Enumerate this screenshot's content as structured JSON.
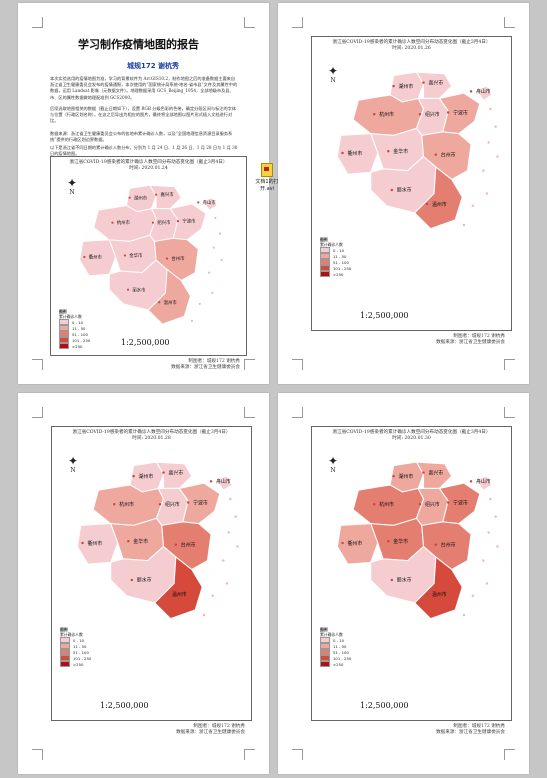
{
  "document": {
    "title": "学习制作疫情地图的报告",
    "author": "城规172 谢杭秀",
    "paragraphs": [
      "本次实验选用的疫情地图为准，学习的背景软件为 ArcGIS10.2，制作地图之后的准备数据主要来自浙江省卫生健康委员会发布的疫情通报，本次使用的“国家统计局系统-地名-省市县”文件及其属性中的数据，运用 Landsat 影像（元数据文件）。地理数据采用 GCS_Beijing_1954，全部地级市及县、市、区的属性数据做地理配准到 GCS2000。",
      "后续选取地图相关的数据（截止日期如下），设置 RGB 分级色彩的色带，确定分段区间与标注的字体与位置（行政区划名称）。在这之后导出为相应的图片，最终将全部地图以图片形式插入文档进行对比。",
      "数据来源：浙江省卫生健康委员会公布的各地市累计确诊人数，以及“全国地理信息资源目录服务系统”提供的行政区划边界数据。",
      "以下是浙江省不同日期的累计确诊人数分布，分别为 1 月 24 日、1 月 26 日、1 月 28 日与 1 月 30 日的疫情地图。"
    ],
    "attachment_label": "文档1的打开.avi"
  },
  "legend": {
    "title": "图例",
    "subtitle": "累计确诊人数",
    "classes": [
      {
        "label": "0 - 10",
        "color": "#f5cdd0"
      },
      {
        "label": "11 - 50",
        "color": "#eea89e"
      },
      {
        "label": "51 - 100",
        "color": "#e47e70"
      },
      {
        "label": "101 - 250",
        "color": "#d64a3b"
      },
      {
        "label": ">250",
        "color": "#b10f14"
      }
    ]
  },
  "map_common": {
    "title": "浙江省COVID-19感染者的累计确诊人数空间分布动态变化图（截止3月4日）",
    "scale": "1:2,500,000",
    "maker": "制图者：城规172 谢杭秀",
    "source": "数据来源：浙江省卫生健康委员会",
    "north": "N"
  },
  "cities": [
    "湖州市",
    "嘉兴市",
    "杭州市",
    "绍兴市",
    "宁波市",
    "舟山市",
    "金华市",
    "衢州市",
    "台州市",
    "丽水市",
    "温州市"
  ],
  "maps": [
    {
      "time": "时间: 2020.01.24",
      "levels": {
        "湖州市": 0,
        "嘉兴市": 0,
        "杭州市": 0,
        "绍兴市": 0,
        "宁波市": 0,
        "舟山市": 0,
        "金华市": 0,
        "衢州市": 0,
        "台州市": 1,
        "丽水市": 0,
        "温州市": 1
      }
    },
    {
      "time": "时间: 2020.01.26",
      "levels": {
        "湖州市": 0,
        "嘉兴市": 0,
        "杭州市": 1,
        "绍兴市": 0,
        "宁波市": 1,
        "舟山市": 0,
        "金华市": 0,
        "衢州市": 0,
        "台州市": 1,
        "丽水市": 0,
        "温州市": 2
      }
    },
    {
      "time": "时间: 2020.01.28",
      "levels": {
        "湖州市": 0,
        "嘉兴市": 0,
        "杭州市": 1,
        "绍兴市": 0,
        "宁波市": 1,
        "舟山市": 0,
        "金华市": 1,
        "衢州市": 0,
        "台州市": 2,
        "丽水市": 0,
        "温州市": 3
      }
    },
    {
      "time": "时间: 2020.01.30",
      "levels": {
        "湖州市": 1,
        "嘉兴市": 1,
        "杭州市": 2,
        "绍兴市": 1,
        "宁波市": 2,
        "舟山市": 0,
        "金华市": 2,
        "衢州市": 1,
        "台州市": 2,
        "丽水市": 0,
        "温州市": 3
      }
    }
  ]
}
